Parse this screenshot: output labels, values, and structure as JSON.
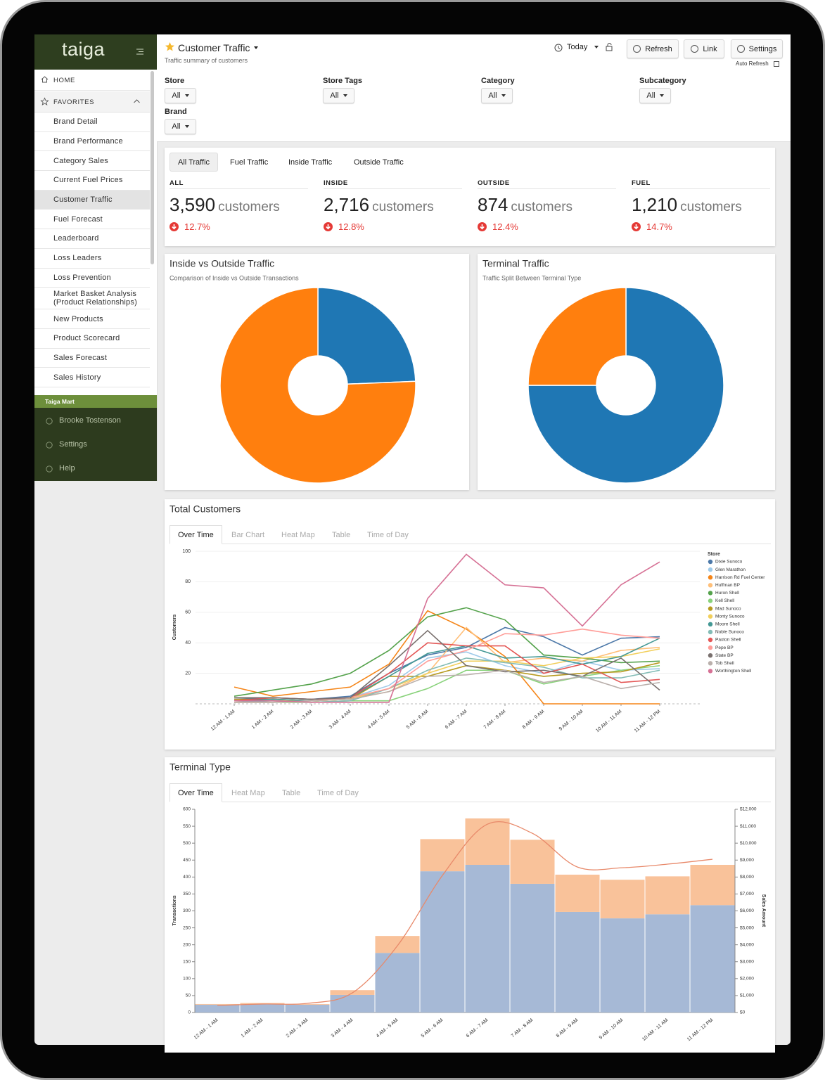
{
  "sidebar": {
    "logo": "taiga",
    "home": "HOME",
    "favorites": "FAVORITES",
    "items": [
      "Brand Detail",
      "Brand Performance",
      "Category Sales",
      "Current Fuel Prices",
      "Customer Traffic",
      "Fuel Forecast",
      "Leaderboard",
      "Loss Leaders",
      "Loss Prevention",
      "Market Basket Analysis (Product Relationships)",
      "New Products",
      "Product Scorecard",
      "Sales Forecast",
      "Sales History"
    ],
    "store": "Taiga Mart",
    "user": "Brooke Tostenson",
    "settings": "Settings",
    "help": "Help"
  },
  "header": {
    "title": "Customer Traffic",
    "subtitle": "Traffic summary of customers",
    "date": "Today",
    "buttons": [
      "Refresh",
      "Link",
      "Settings"
    ],
    "auto_refresh": "Auto Refresh"
  },
  "filters": [
    {
      "label": "Store",
      "value": "All"
    },
    {
      "label": "Store Tags",
      "value": "All"
    },
    {
      "label": "Category",
      "value": "All"
    },
    {
      "label": "Subcategory",
      "value": "All"
    },
    {
      "label": "Brand",
      "value": "All"
    }
  ],
  "traffic_tabs": [
    "All Traffic",
    "Fuel Traffic",
    "Inside Traffic",
    "Outside Traffic"
  ],
  "kpis": [
    {
      "label": "ALL",
      "value": "3,590",
      "unit": "customers",
      "change": "12.7%"
    },
    {
      "label": "INSIDE",
      "value": "2,716",
      "unit": "customers",
      "change": "12.8%"
    },
    {
      "label": "OUTSIDE",
      "value": "874",
      "unit": "customers",
      "change": "12.4%"
    },
    {
      "label": "FUEL",
      "value": "1,210",
      "unit": "customers",
      "change": "14.7%"
    }
  ],
  "chart_data": [
    {
      "type": "pie",
      "title": "Inside vs Outside Traffic",
      "subtitle": "Comparison of Inside vs Outside Transactions",
      "values": [
        874,
        2716
      ],
      "colors": [
        "#1f77b4",
        "#ff7f0e"
      ]
    },
    {
      "type": "pie",
      "title": "Terminal Traffic",
      "subtitle": "Traffic Split Between Terminal Type",
      "values": [
        75,
        25
      ],
      "colors": [
        "#1f77b4",
        "#ff7f0e"
      ]
    },
    {
      "type": "line",
      "title": "Total Customers",
      "tabs": [
        "Over Time",
        "Bar Chart",
        "Heat Map",
        "Table",
        "Time of Day"
      ],
      "ylabel": "Customers",
      "legend_title": "Store",
      "legend": "right",
      "categories": [
        "12 AM - 1 AM",
        "1 AM - 2 AM",
        "2 AM - 3 AM",
        "3 AM - 4 AM",
        "4 AM - 5 AM",
        "5 AM - 6 AM",
        "6 AM - 7 AM",
        "7 AM - 8 AM",
        "8 AM - 9 AM",
        "9 AM - 10 AM",
        "10 AM - 11 AM",
        "11 AM - 12 PM"
      ],
      "ylim": [
        0,
        100
      ],
      "yticks": [
        20,
        40,
        60,
        80,
        100
      ],
      "grid": true,
      "series": [
        {
          "name": "Dixie Sunoco",
          "color": "#4c78a8",
          "values": [
            3,
            4,
            3,
            5,
            20,
            32,
            37,
            50,
            44,
            32,
            43,
            44
          ]
        },
        {
          "name": "Glen Marathon",
          "color": "#9ecae9",
          "values": [
            2,
            3,
            2,
            4,
            12,
            30,
            34,
            25,
            20,
            28,
            22,
            23
          ]
        },
        {
          "name": "Harrison Rd Fuel Center",
          "color": "#f58518",
          "values": [
            11,
            5,
            8,
            11,
            26,
            61,
            49,
            31,
            0,
            0,
            0,
            0
          ]
        },
        {
          "name": "Huffman BP",
          "color": "#ffbf79",
          "values": [
            1,
            2,
            2,
            3,
            8,
            20,
            50,
            27,
            30,
            28,
            35,
            37
          ]
        },
        {
          "name": "Huron Shell",
          "color": "#54a24b",
          "values": [
            5,
            9,
            13,
            20,
            35,
            57,
            63,
            55,
            32,
            30,
            27,
            28
          ]
        },
        {
          "name": "Kell Shell",
          "color": "#88d27a",
          "values": [
            1,
            1,
            1,
            2,
            2,
            10,
            22,
            22,
            13,
            18,
            22,
            25
          ]
        },
        {
          "name": "Mad Sunoco",
          "color": "#b79a20",
          "values": [
            3,
            3,
            2,
            3,
            18,
            18,
            25,
            22,
            18,
            20,
            21,
            27
          ]
        },
        {
          "name": "Monty Sunoco",
          "color": "#f2cf5b",
          "values": [
            1,
            1,
            2,
            3,
            10,
            20,
            28,
            28,
            25,
            30,
            31,
            36
          ]
        },
        {
          "name": "Moore Shell",
          "color": "#439894",
          "values": [
            2,
            3,
            2,
            4,
            18,
            33,
            38,
            30,
            31,
            26,
            31,
            43
          ]
        },
        {
          "name": "Noble Sunoco",
          "color": "#83bcb6",
          "values": [
            1,
            2,
            1,
            2,
            10,
            22,
            30,
            27,
            24,
            17,
            17,
            22
          ]
        },
        {
          "name": "Paxton Shell",
          "color": "#e45756",
          "values": [
            2,
            4,
            3,
            4,
            20,
            40,
            38,
            38,
            20,
            26,
            14,
            16
          ]
        },
        {
          "name": "Pepe BP",
          "color": "#ff9d98",
          "values": [
            1,
            1,
            2,
            4,
            10,
            28,
            35,
            46,
            45,
            49,
            45,
            43
          ]
        },
        {
          "name": "State BP",
          "color": "#79706e",
          "values": [
            4,
            4,
            3,
            4,
            25,
            48,
            25,
            21,
            22,
            18,
            30,
            9
          ]
        },
        {
          "name": "Tob Shell",
          "color": "#bab0ac",
          "values": [
            1,
            1,
            2,
            3,
            8,
            18,
            19,
            22,
            14,
            18,
            10,
            14
          ]
        },
        {
          "name": "Worthington Shell",
          "color": "#d67195",
          "values": [
            2,
            2,
            1,
            1,
            1,
            69,
            98,
            78,
            76,
            51,
            78,
            93
          ]
        }
      ]
    },
    {
      "type": "bar",
      "stacked": true,
      "title": "Terminal Type",
      "tabs": [
        "Over Time",
        "Heat Map",
        "Table",
        "Time of Day"
      ],
      "ylabel": "Transactions",
      "y2label": "Sales Amount",
      "categories": [
        "12 AM - 1 AM",
        "1 AM - 2 AM",
        "2 AM - 3 AM",
        "3 AM - 4 AM",
        "4 AM - 5 AM",
        "5 AM - 6 AM",
        "6 AM - 7 AM",
        "7 AM - 8 AM",
        "8 AM - 9 AM",
        "9 AM - 10 AM",
        "10 AM - 11 AM",
        "11 AM - 12 PM"
      ],
      "ylim": [
        0,
        600
      ],
      "yticks": [
        0,
        50,
        100,
        150,
        200,
        250,
        300,
        350,
        400,
        450,
        500,
        550,
        600
      ],
      "y2lim": [
        0,
        12000
      ],
      "y2ticks": [
        {
          "value": 0,
          "label": "$0"
        },
        {
          "value": 1000,
          "label": "$1,000"
        },
        {
          "value": 2000,
          "label": "$2,000"
        },
        {
          "value": 3000,
          "label": "$3,000"
        },
        {
          "value": 4000,
          "label": "$4,000"
        },
        {
          "value": 5000,
          "label": "$5,000"
        },
        {
          "value": 6000,
          "label": "$6,000"
        },
        {
          "value": 7000,
          "label": "$7,000"
        },
        {
          "value": 8000,
          "label": "$8,000"
        },
        {
          "value": 9000,
          "label": "$9,000"
        },
        {
          "value": 10000,
          "label": "$10,000"
        },
        {
          "value": 11000,
          "label": "$11,000"
        },
        {
          "value": 12000,
          "label": "$12,000"
        }
      ],
      "series": [
        {
          "color": "#a6b9d6",
          "values": [
            23,
            24,
            23,
            52,
            176,
            417,
            436,
            380,
            297,
            278,
            290,
            317
          ]
        },
        {
          "color": "#f9c29a",
          "values": [
            2,
            4,
            2,
            14,
            50,
            95,
            137,
            130,
            110,
            114,
            112,
            119
          ]
        },
        {
          "color": "#e8896a",
          "axis": "y2",
          "values": [
            415,
            500,
            540,
            1160,
            3940,
            8090,
            11120,
            10580,
            8590,
            8550,
            8760,
            9050
          ]
        }
      ]
    }
  ]
}
